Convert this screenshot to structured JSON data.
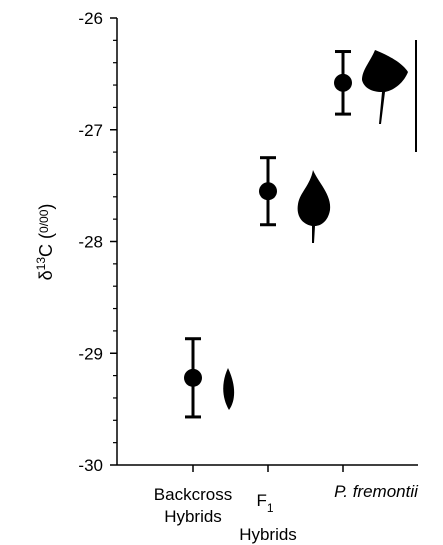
{
  "chart_data": {
    "type": "errorbar",
    "ylabel_parts": [
      "δ",
      "13",
      "C (",
      "0/00",
      ")"
    ],
    "categories": [
      {
        "lines": [
          "Backcross",
          "Hybrids"
        ]
      },
      {
        "lines": [
          "F",
          "Hybrids"
        ],
        "subscript": "1"
      },
      {
        "lines": [
          "P. fremontii"
        ]
      }
    ],
    "values": [
      -29.22,
      -27.55,
      -26.58
    ],
    "errors": [
      0.35,
      0.3,
      0.28
    ],
    "color": "#000000",
    "ylim": [
      -30,
      -26
    ],
    "yticks": [
      -30,
      -29,
      -28,
      -27,
      -26
    ],
    "yminorticks": [
      -29.8,
      -29.6,
      -29.4,
      -29.2,
      -28.8,
      -28.6,
      -28.4,
      -28.2,
      -27.8,
      -27.6,
      -27.4,
      -27.2,
      -26.8,
      -26.6,
      -26.4,
      -26.2
    ]
  }
}
